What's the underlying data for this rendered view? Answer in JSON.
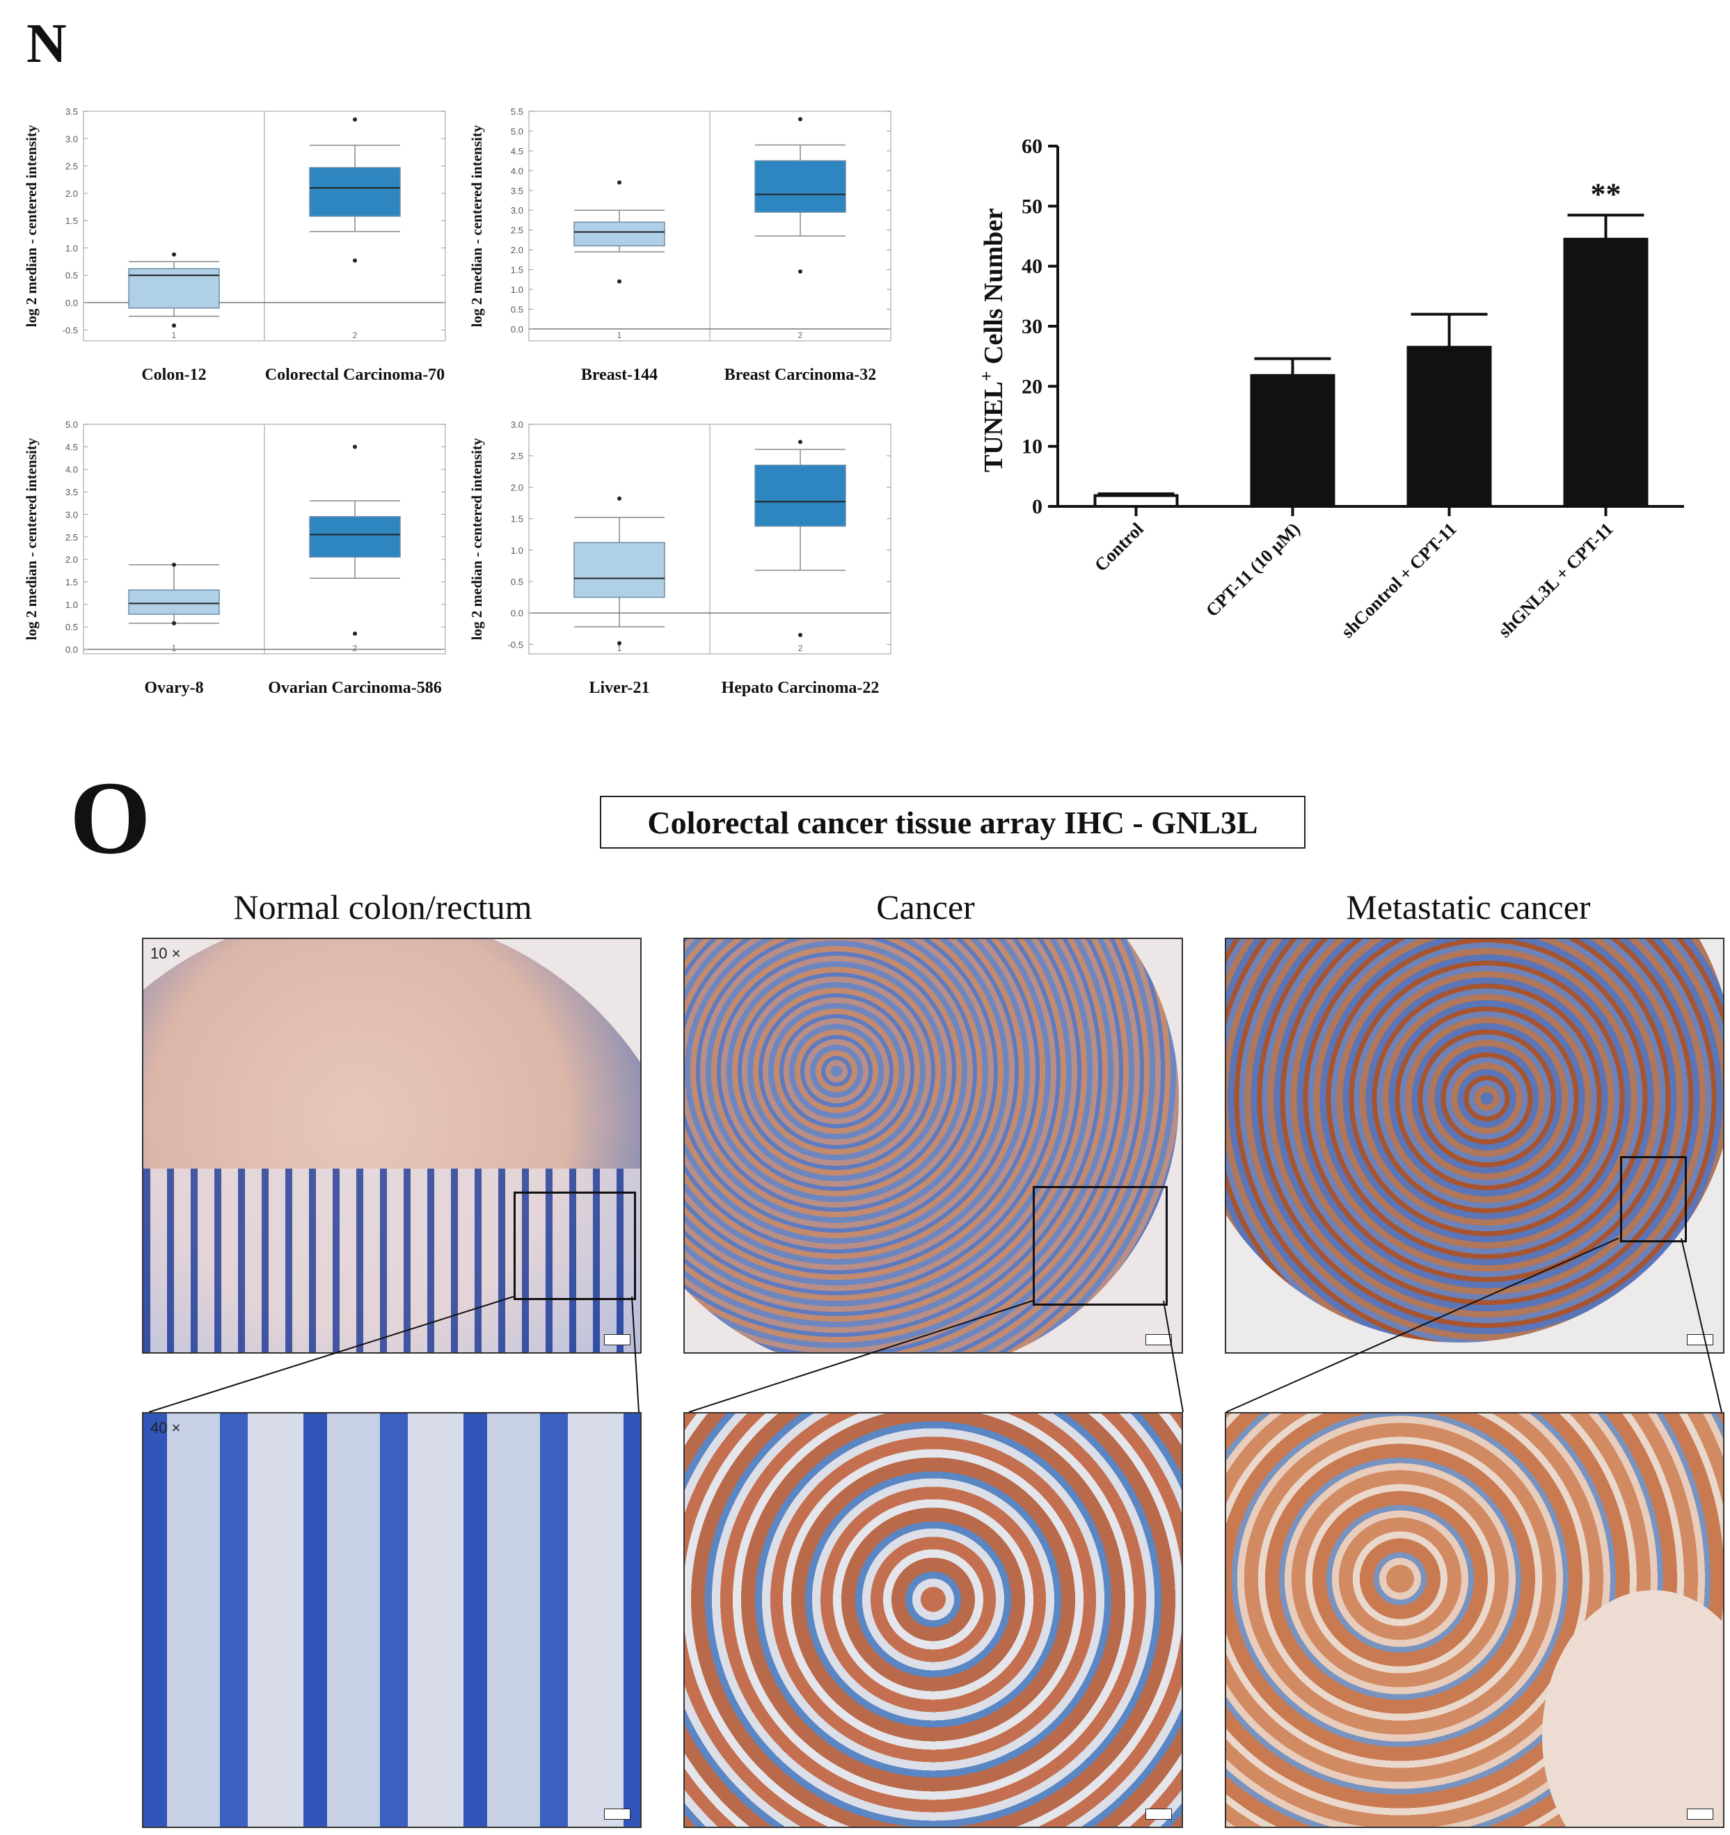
{
  "panel_labels": {
    "n": "N",
    "o": "O"
  },
  "chart_data": [
    {
      "type": "boxplot",
      "ylabel": "log 2 median - centered intensity",
      "ylim": [
        -0.7,
        3.5
      ],
      "yticks": [
        "-0.5",
        "0.0",
        "0.5",
        "1.0",
        "1.5",
        "2.0",
        "2.5",
        "3.0",
        "3.5"
      ],
      "xticks": [
        "1",
        "2"
      ],
      "groups": [
        {
          "label": "Colon-12",
          "min": -0.25,
          "q1": -0.1,
          "median": 0.5,
          "q3": 0.62,
          "max": 0.75,
          "outliers": [
            0.88,
            -0.42
          ],
          "color": "#b0d0e8"
        },
        {
          "label": "Colorectal Carcinoma-70",
          "min": 1.3,
          "q1": 1.58,
          "median": 2.1,
          "q3": 2.47,
          "max": 2.88,
          "outliers": [
            3.35,
            0.77
          ],
          "color": "#2e86c1"
        }
      ]
    },
    {
      "type": "boxplot",
      "ylabel": "log 2 median - centered intensity",
      "ylim": [
        -0.3,
        5.5
      ],
      "yticks": [
        "0.0",
        "0.5",
        "1.0",
        "1.5",
        "2.0",
        "2.5",
        "3.0",
        "3.5",
        "4.0",
        "4.5",
        "5.0",
        "5.5"
      ],
      "xticks": [
        "1",
        "2"
      ],
      "groups": [
        {
          "label": "Breast-144",
          "min": 1.95,
          "q1": 2.1,
          "median": 2.45,
          "q3": 2.7,
          "max": 3.0,
          "outliers": [
            3.7,
            1.2
          ],
          "color": "#b0d0e8"
        },
        {
          "label": "Breast Carcinoma-32",
          "min": 2.35,
          "q1": 2.95,
          "median": 3.4,
          "q3": 4.25,
          "max": 4.65,
          "outliers": [
            5.3,
            1.45
          ],
          "color": "#2e86c1"
        }
      ]
    },
    {
      "type": "boxplot",
      "ylabel": "log 2 median - centered intensity",
      "ylim": [
        -0.1,
        5.0
      ],
      "yticks": [
        "0.0",
        "0.5",
        "1.0",
        "1.5",
        "2.0",
        "2.5",
        "3.0",
        "3.5",
        "4.0",
        "4.5",
        "5.0"
      ],
      "xticks": [
        "1",
        "2"
      ],
      "groups": [
        {
          "label": "Ovary-8",
          "min": 0.58,
          "q1": 0.78,
          "median": 1.02,
          "q3": 1.32,
          "max": 1.88,
          "outliers": [
            1.88,
            0.58
          ],
          "color": "#b0d0e8"
        },
        {
          "label": "Ovarian Carcinoma-586",
          "min": 1.58,
          "q1": 2.05,
          "median": 2.55,
          "q3": 2.95,
          "max": 3.3,
          "outliers": [
            4.5,
            0.35
          ],
          "color": "#2e86c1"
        }
      ]
    },
    {
      "type": "boxplot",
      "ylabel": "log 2 median - centered intensity",
      "ylim": [
        -0.65,
        3.0
      ],
      "yticks": [
        "-0.5",
        "0.0",
        "0.5",
        "1.0",
        "1.5",
        "2.0",
        "2.5",
        "3.0"
      ],
      "xticks": [
        "1",
        "2"
      ],
      "groups": [
        {
          "label": "Liver-21",
          "min": -0.22,
          "q1": 0.25,
          "median": 0.55,
          "q3": 1.12,
          "max": 1.52,
          "outliers": [
            1.82,
            -0.48
          ],
          "color": "#b0d0e8"
        },
        {
          "label": "Hepato Carcinoma-22",
          "min": 0.68,
          "q1": 1.38,
          "median": 1.77,
          "q3": 2.35,
          "max": 2.6,
          "outliers": [
            2.72,
            -0.35
          ],
          "color": "#2e86c1"
        }
      ]
    },
    {
      "type": "bar",
      "ylabel_main": "TUNEL",
      "ylabel_sup": "+",
      "ylabel_rest": " Cells Number",
      "ylim": [
        0,
        60
      ],
      "yticks": [
        "0",
        "10",
        "20",
        "30",
        "40",
        "50",
        "60"
      ],
      "categories": [
        "Control",
        "CPT-11 (10 μM)",
        "shControl + CPT-11",
        "shGNL3L + CPT-11"
      ],
      "values": [
        1.8,
        21.8,
        26.5,
        44.5
      ],
      "errors": [
        0.3,
        2.8,
        5.5,
        4.0
      ],
      "annotation": "**",
      "annotation_index": 3,
      "colors": [
        "#ffffff",
        "#111111",
        "#111111",
        "#111111"
      ]
    }
  ],
  "ihc": {
    "banner": "Colorectal cancer tissue array IHC - GNL3L",
    "columns": [
      "Normal colon/rectum",
      "Cancer",
      "Metastatic cancer"
    ],
    "mag_low": "10 ×",
    "mag_high": "40 ×"
  },
  "colors": {
    "normal_stain": "#3b62b8",
    "dab_stain": "#c0683f",
    "background": "#ece6e4"
  }
}
